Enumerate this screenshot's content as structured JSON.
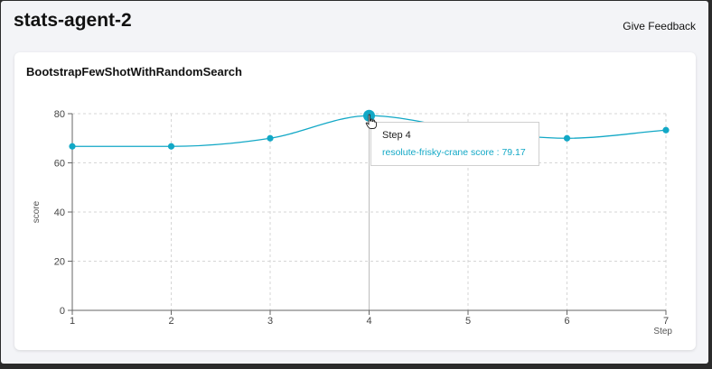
{
  "page": {
    "title": "stats-agent-2",
    "feedback_label": "Give Feedback"
  },
  "card": {
    "title": "BootstrapFewShotWithRandomSearch"
  },
  "tooltip": {
    "step_label": "Step 4",
    "series_line": "resolute-frisky-crane score : 79.17"
  },
  "colors": {
    "series": "#12a8c6",
    "grid": "#d6d6d6",
    "axis": "#666666"
  },
  "chart_data": {
    "type": "line",
    "title": "",
    "xlabel": "Step",
    "ylabel": "score",
    "x": [
      1,
      2,
      3,
      4,
      5,
      6,
      7
    ],
    "series": [
      {
        "name": "resolute-frisky-crane",
        "values": [
          66.7,
          66.7,
          70.0,
          79.17,
          73.5,
          70.0,
          73.3
        ]
      }
    ],
    "xticks": [
      "1",
      "2",
      "3",
      "4",
      "5",
      "6",
      "7"
    ],
    "yticks": [
      "0",
      "20",
      "40",
      "60",
      "80"
    ],
    "xlim": [
      1,
      7
    ],
    "ylim": [
      0,
      80
    ],
    "grid": true,
    "highlight_index": 3
  }
}
